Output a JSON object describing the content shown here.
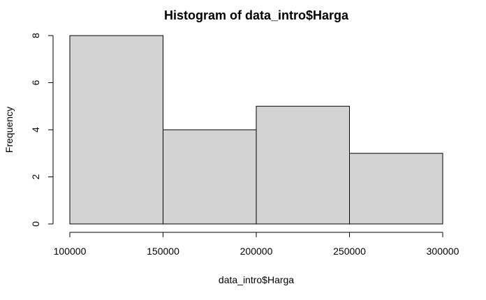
{
  "chart_data": {
    "type": "bar",
    "title": "Histogram of data_intro$Harga",
    "xlabel": "data_intro$Harga",
    "ylabel": "Frequency",
    "bins": [
      {
        "from": 100000,
        "to": 150000,
        "count": 8
      },
      {
        "from": 150000,
        "to": 200000,
        "count": 4
      },
      {
        "from": 200000,
        "to": 250000,
        "count": 5
      },
      {
        "from": 250000,
        "to": 300000,
        "count": 3
      }
    ],
    "xlim": [
      100000,
      300000
    ],
    "ylim": [
      0,
      8
    ],
    "x_ticks": [
      100000,
      150000,
      200000,
      250000,
      300000
    ],
    "x_tick_labels": [
      "100000",
      "150000",
      "200000",
      "250000",
      "300000"
    ],
    "y_ticks": [
      0,
      2,
      4,
      6,
      8
    ],
    "y_tick_labels": [
      "0",
      "2",
      "4",
      "6",
      "8"
    ],
    "bar_fill": "#d3d3d3",
    "bar_stroke": "#000000",
    "grid": false
  }
}
